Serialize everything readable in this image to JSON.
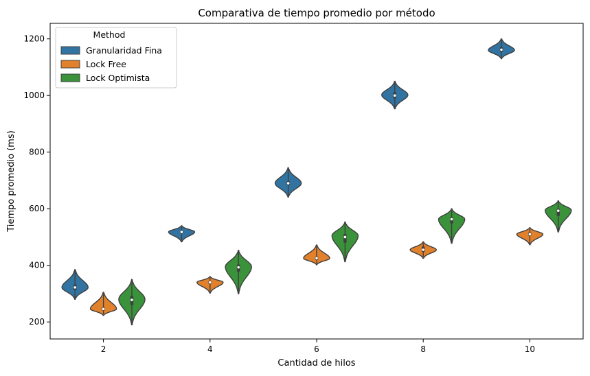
{
  "chart_data": {
    "type": "violin",
    "title": "Comparativa de tiempo promedio por método",
    "xlabel": "Cantidad de hilos",
    "ylabel": "Tiempo promedio (ms)",
    "categories": [
      "2",
      "4",
      "6",
      "8",
      "10"
    ],
    "ylim": [
      140,
      1255
    ],
    "yticks": [
      200,
      400,
      600,
      800,
      1000,
      1200
    ],
    "grid": false,
    "legend": {
      "title": "Method",
      "placement": "top-left"
    },
    "series": [
      {
        "name": "Granularidad Fina",
        "color": "#3274a1",
        "violins": [
          {
            "min": 280,
            "max": 385,
            "median": 322,
            "q1": 313,
            "q3": 332,
            "peak": 322
          },
          {
            "min": 483,
            "max": 540,
            "median": 518,
            "q1": 513,
            "q3": 523,
            "peak": 518
          },
          {
            "min": 641,
            "max": 745,
            "median": 690,
            "q1": 683,
            "q3": 697,
            "peak": 690
          },
          {
            "min": 953,
            "max": 1050,
            "median": 1000,
            "q1": 990,
            "q3": 1012,
            "peak": 1002
          },
          {
            "min": 1130,
            "max": 1200,
            "median": 1162,
            "q1": 1155,
            "q3": 1170,
            "peak": 1160
          }
        ]
      },
      {
        "name": "Lock Free",
        "color": "#e1812c",
        "violins": [
          {
            "min": 223,
            "max": 305,
            "median": 246,
            "q1": 241,
            "q3": 251,
            "peak": 246
          },
          {
            "min": 302,
            "max": 360,
            "median": 340,
            "q1": 335,
            "q3": 344,
            "peak": 340
          },
          {
            "min": 402,
            "max": 472,
            "median": 425,
            "q1": 419,
            "q3": 430,
            "peak": 425
          },
          {
            "min": 425,
            "max": 483,
            "median": 455,
            "q1": 448,
            "q3": 466,
            "peak": 455
          },
          {
            "min": 473,
            "max": 533,
            "median": 510,
            "q1": 505,
            "q3": 516,
            "peak": 510
          }
        ]
      },
      {
        "name": "Lock Optimista",
        "color": "#3a923a",
        "violins": [
          {
            "min": 190,
            "max": 350,
            "median": 278,
            "q1": 260,
            "q3": 292,
            "peak": 280
          },
          {
            "min": 300,
            "max": 453,
            "median": 393,
            "q1": 378,
            "q3": 403,
            "peak": 395
          },
          {
            "min": 413,
            "max": 553,
            "median": 500,
            "q1": 480,
            "q3": 510,
            "peak": 505
          },
          {
            "min": 478,
            "max": 600,
            "median": 563,
            "q1": 548,
            "q3": 570,
            "peak": 563
          },
          {
            "min": 518,
            "max": 628,
            "median": 593,
            "q1": 575,
            "q3": 600,
            "peak": 595
          }
        ]
      }
    ]
  }
}
